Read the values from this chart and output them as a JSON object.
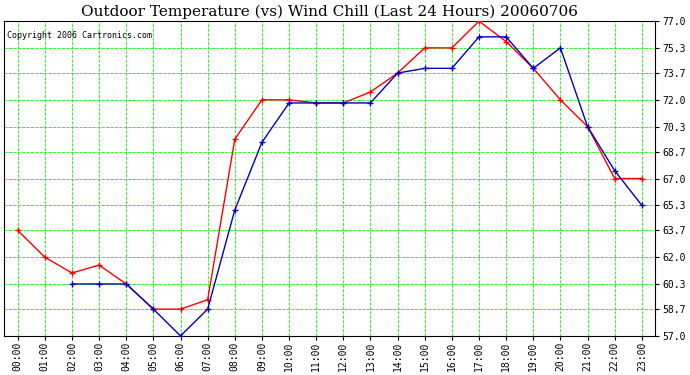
{
  "title": "Outdoor Temperature (vs) Wind Chill (Last 24 Hours) 20060706",
  "copyright": "Copyright 2006 Cartronics.com",
  "hours": [
    "00:00",
    "01:00",
    "02:00",
    "03:00",
    "04:00",
    "05:00",
    "06:00",
    "07:00",
    "08:00",
    "09:00",
    "10:00",
    "11:00",
    "12:00",
    "13:00",
    "14:00",
    "15:00",
    "16:00",
    "17:00",
    "18:00",
    "19:00",
    "20:00",
    "21:00",
    "22:00",
    "23:00"
  ],
  "temp": [
    63.7,
    62.0,
    61.0,
    61.5,
    60.3,
    58.7,
    58.7,
    59.3,
    69.5,
    72.0,
    72.0,
    71.8,
    71.8,
    72.5,
    73.7,
    75.3,
    75.3,
    77.0,
    75.7,
    74.0,
    72.0,
    70.3,
    67.0,
    67.0
  ],
  "windchill": [
    null,
    null,
    60.3,
    60.3,
    60.3,
    58.7,
    57.0,
    58.7,
    65.0,
    69.3,
    71.8,
    71.8,
    71.8,
    71.8,
    73.7,
    74.0,
    74.0,
    76.0,
    76.0,
    74.0,
    75.3,
    70.3,
    67.5,
    65.3
  ],
  "temp_color": "#ff0000",
  "windchill_color": "#0000bb",
  "ylim": [
    57.0,
    77.0
  ],
  "yticks": [
    57.0,
    58.7,
    60.3,
    62.0,
    63.7,
    65.3,
    67.0,
    68.7,
    70.3,
    72.0,
    73.7,
    75.3,
    77.0
  ],
  "bg_color": "#ffffff",
  "plot_bg_color": "#ffffff",
  "grid_color": "#00ff00",
  "title_fontsize": 11,
  "copyright_fontsize": 6,
  "tick_fontsize": 7,
  "marker_size": 3
}
